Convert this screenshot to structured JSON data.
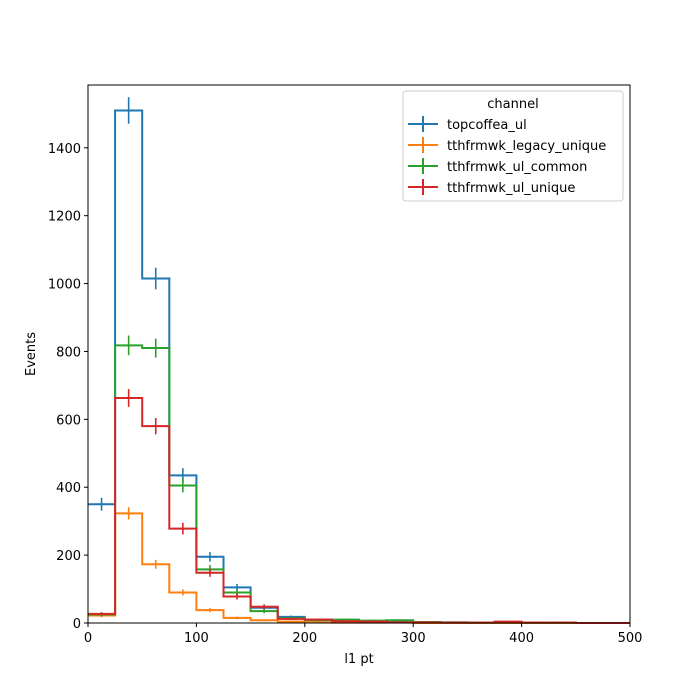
{
  "chart_data": {
    "type": "step-histogram",
    "xlabel": "l1 pt",
    "ylabel": "Events",
    "xlim": [
      0,
      500
    ],
    "ylim": [
      0,
      1585
    ],
    "bin_width": 25,
    "x_ticks": [
      0,
      100,
      200,
      300,
      400,
      500
    ],
    "y_ticks": [
      0,
      200,
      400,
      600,
      800,
      1000,
      1200,
      1400
    ],
    "legend": {
      "title": "channel",
      "position": "top-right"
    },
    "series": [
      {
        "name": "topcoffea_ul",
        "color": "#1f77b4",
        "values": [
          350,
          1510,
          1015,
          435,
          195,
          105,
          45,
          18,
          10,
          8,
          5,
          3,
          3,
          2,
          1,
          1,
          1,
          1,
          0,
          0
        ],
        "errors": [
          19,
          39,
          32,
          21,
          14,
          10,
          7,
          4,
          3,
          3,
          2,
          2,
          2,
          1,
          1,
          1,
          1,
          1,
          0,
          0
        ]
      },
      {
        "name": "tthfrmwk_legacy_unique",
        "color": "#ff7f0e",
        "values": [
          22,
          323,
          173,
          90,
          38,
          15,
          8,
          4,
          2,
          1,
          1,
          1,
          0,
          0,
          0,
          0,
          0,
          0,
          0,
          0
        ],
        "errors": [
          5,
          18,
          13,
          9,
          6,
          4,
          3,
          2,
          1,
          1,
          1,
          1,
          0,
          0,
          0,
          0,
          0,
          0,
          0,
          0
        ]
      },
      {
        "name": "tthfrmwk_ul_common",
        "color": "#2ca02c",
        "values": [
          25,
          818,
          810,
          405,
          158,
          90,
          35,
          14,
          8,
          10,
          7,
          8,
          3,
          2,
          1,
          1,
          1,
          1,
          0,
          0
        ],
        "errors": [
          5,
          29,
          28,
          20,
          13,
          9,
          6,
          4,
          3,
          3,
          3,
          3,
          2,
          1,
          1,
          1,
          1,
          1,
          0,
          0
        ]
      },
      {
        "name": "tthfrmwk_ul_unique",
        "color": "#d62728",
        "values": [
          27,
          663,
          580,
          278,
          148,
          78,
          48,
          12,
          10,
          5,
          4,
          2,
          2,
          1,
          1,
          4,
          1,
          1,
          0,
          0
        ],
        "errors": [
          5,
          26,
          24,
          17,
          12,
          9,
          7,
          3,
          3,
          2,
          2,
          1,
          1,
          1,
          1,
          2,
          1,
          1,
          0,
          0
        ]
      }
    ]
  }
}
